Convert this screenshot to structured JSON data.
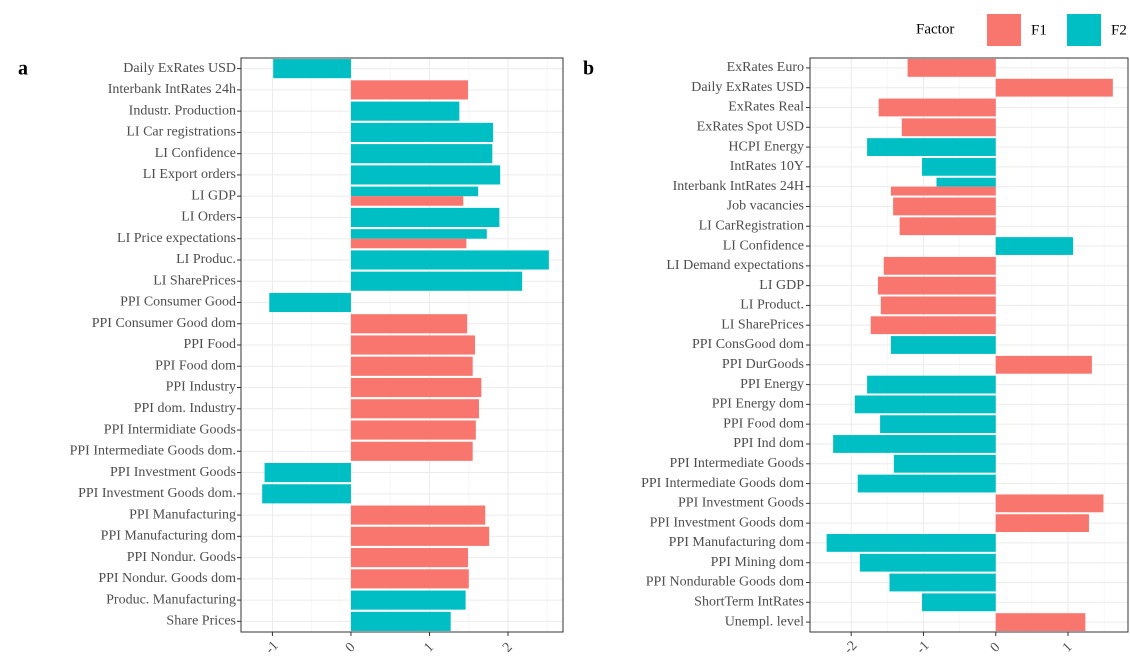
{
  "chart_data": [
    {
      "type": "bar",
      "orientation": "horizontal",
      "panel_label": "a",
      "legend_title": "Factor",
      "categories": [
        "Daily ExRates USD",
        "Interbank IntRates 24h",
        "Industr. Production",
        "LI Car registrations",
        "LI Confidence",
        "LI Export orders",
        "LI GDP",
        "LI Orders",
        "LI Price expectations",
        "LI Produc.",
        "LI SharePrices",
        "PPI Consumer Good",
        "PPI Consumer Good dom",
        "PPI Food",
        "PPI Food dom",
        "PPI Industry",
        "PPI dom. Industry",
        "PPI Intermidiate Goods",
        "PPI Intermediate Goods dom.",
        "PPI Investment Goods",
        "PPI Investment Goods dom.",
        "PPI Manufacturing",
        "PPI Manufacturing dom",
        "PPI Nondur. Goods",
        "PPI Nondur. Goods dom",
        "Produc. Manufacturing",
        "Share Prices"
      ],
      "series": [
        {
          "name": "F1",
          "color": "#F8766D",
          "values": [
            null,
            1.49,
            null,
            null,
            null,
            null,
            1.43,
            null,
            1.47,
            null,
            null,
            null,
            1.48,
            1.58,
            1.55,
            1.66,
            1.63,
            1.59,
            1.55,
            null,
            null,
            1.71,
            1.76,
            1.49,
            1.5,
            null,
            null
          ]
        },
        {
          "name": "F2",
          "color": "#00BFC4",
          "values": [
            -0.99,
            null,
            1.38,
            1.81,
            1.8,
            1.9,
            1.62,
            1.89,
            1.73,
            2.52,
            2.18,
            -1.04,
            null,
            null,
            null,
            null,
            null,
            null,
            null,
            -1.1,
            -1.13,
            null,
            null,
            null,
            null,
            1.46,
            1.27
          ]
        }
      ],
      "xlim": [
        -1.4,
        2.7
      ],
      "xticks": [
        -1,
        0,
        1,
        2
      ],
      "grid": true
    },
    {
      "type": "bar",
      "orientation": "horizontal",
      "panel_label": "b",
      "categories": [
        "ExRates Euro",
        "Daily ExRates USD",
        "ExRates Real",
        "ExRates Spot USD",
        "HCPI Energy",
        "IntRates 10Y",
        "Interbank IntRates 24H",
        "Job vacancies",
        "LI CarRegistration",
        "LI Confidence",
        "LI Demand expectations",
        "LI GDP",
        "LI Product.",
        "LI SharePrices",
        "PPI ConsGood dom",
        "PPI DurGoods",
        "PPI Energy",
        "PPI Energy dom",
        "PPI Food dom",
        "PPI Ind dom",
        "PPI Intermediate Goods",
        "PPI Intermediate Goods dom",
        "PPI Investment Goods",
        "PPI Investment Goods dom",
        "PPI Manufacturing dom",
        "PPI Mining dom",
        "PPI Nondurable Goods dom",
        "ShortTerm IntRates",
        "Unempl. level"
      ],
      "series": [
        {
          "name": "F1",
          "color": "#F8766D",
          "values": [
            -1.22,
            1.62,
            -1.62,
            -1.3,
            null,
            null,
            -1.45,
            -1.42,
            -1.33,
            null,
            -1.55,
            -1.63,
            -1.59,
            -1.73,
            null,
            1.33,
            null,
            null,
            null,
            null,
            null,
            null,
            1.49,
            1.29,
            null,
            null,
            null,
            null,
            1.24
          ]
        },
        {
          "name": "F2",
          "color": "#00BFC4",
          "values": [
            null,
            null,
            null,
            null,
            -1.78,
            -1.02,
            -0.82,
            null,
            null,
            1.07,
            null,
            null,
            null,
            null,
            -1.45,
            null,
            -1.78,
            -1.95,
            -1.6,
            -2.25,
            -1.41,
            -1.91,
            null,
            null,
            -2.34,
            -1.88,
            -1.47,
            -1.02,
            null
          ]
        }
      ],
      "xlim": [
        -2.57,
        1.83
      ],
      "xticks": [
        -2,
        -1,
        0,
        1
      ],
      "grid": true
    }
  ]
}
